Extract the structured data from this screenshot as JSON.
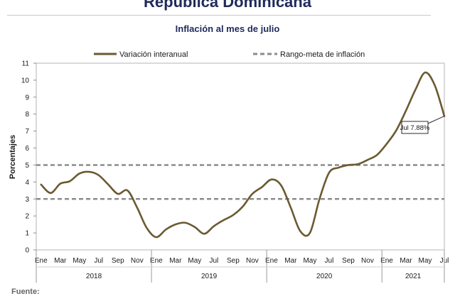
{
  "header": {
    "title": "República Dominicana",
    "subtitle": "Inflación al mes de julio"
  },
  "footer": {
    "source_label": "Fuente:"
  },
  "chart_data": {
    "type": "line",
    "title": "República Dominicana",
    "subtitle": "Inflación al mes de julio",
    "ylabel": "Porcentajes",
    "xlabel": "",
    "ylim": [
      0,
      11
    ],
    "yticks": [
      0,
      1,
      2,
      3,
      4,
      5,
      6,
      7,
      8,
      9,
      10,
      11
    ],
    "grid": false,
    "legend_position": "top",
    "x_month_labels": [
      "Ene",
      "Mar",
      "May",
      "Jul",
      "Sep",
      "Nov",
      "Ene",
      "Mar",
      "May",
      "Jul",
      "Sep",
      "Nov",
      "Ene",
      "Mar",
      "May",
      "Jul",
      "Sep",
      "Nov",
      "Ene",
      "Mar",
      "May",
      "Jul"
    ],
    "x_year_labels": [
      "2018",
      "2019",
      "2020",
      "2021"
    ],
    "x": [
      "2018-01",
      "2018-02",
      "2018-03",
      "2018-04",
      "2018-05",
      "2018-06",
      "2018-07",
      "2018-08",
      "2018-09",
      "2018-10",
      "2018-11",
      "2018-12",
      "2019-01",
      "2019-02",
      "2019-03",
      "2019-04",
      "2019-05",
      "2019-06",
      "2019-07",
      "2019-08",
      "2019-09",
      "2019-10",
      "2019-11",
      "2019-12",
      "2020-01",
      "2020-02",
      "2020-03",
      "2020-04",
      "2020-05",
      "2020-06",
      "2020-07",
      "2020-08",
      "2020-09",
      "2020-10",
      "2020-11",
      "2020-12",
      "2021-01",
      "2021-02",
      "2021-03",
      "2021-04",
      "2021-05",
      "2021-06",
      "2021-07"
    ],
    "series": [
      {
        "name": "Variación interanual",
        "style": "solid",
        "color": "#6b5a32",
        "values": [
          3.85,
          3.35,
          3.9,
          4.05,
          4.5,
          4.6,
          4.4,
          3.85,
          3.3,
          3.5,
          2.5,
          1.3,
          0.75,
          1.2,
          1.5,
          1.6,
          1.35,
          0.95,
          1.4,
          1.75,
          2.05,
          2.55,
          3.3,
          3.7,
          4.15,
          3.8,
          2.5,
          1.1,
          1.0,
          3.0,
          4.55,
          4.85,
          5.0,
          5.05,
          5.3,
          5.6,
          6.25,
          7.05,
          8.2,
          9.45,
          10.45,
          9.7,
          7.88
        ]
      },
      {
        "name": "Rango-meta de inflación",
        "style": "dashed",
        "color": "#8c8c8c",
        "bands": [
          3,
          5
        ]
      }
    ],
    "annotation": {
      "text": "Jul 7.88%",
      "x": "2021-07",
      "y": 7.88
    }
  }
}
